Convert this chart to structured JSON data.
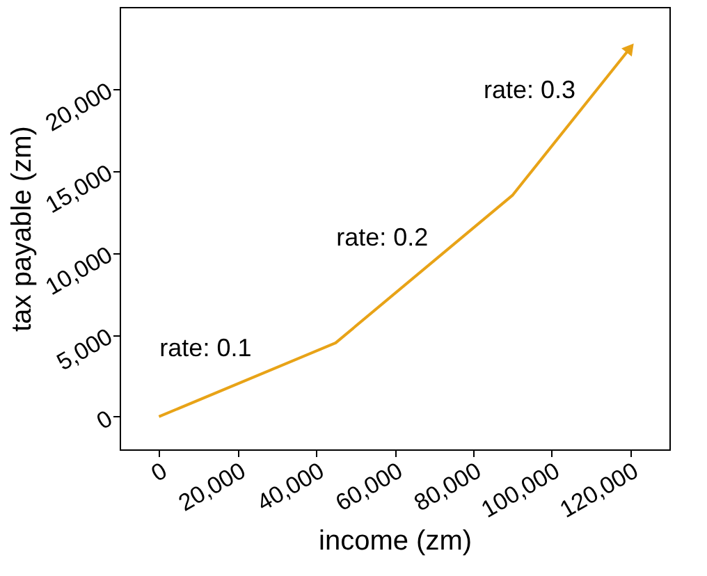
{
  "chart_data": {
    "type": "line",
    "xlabel": "income (zm)",
    "ylabel": "tax payable (zm)",
    "x": [
      0,
      45000,
      90000,
      120000
    ],
    "series": [
      {
        "color": "#e8a317",
        "values": [
          0,
          4500,
          13500,
          22500
        ]
      }
    ],
    "xlim": [
      -10000,
      130000
    ],
    "ylim": [
      -2000,
      25000
    ],
    "xticks": [
      0,
      {
        "value": 20000,
        "label": "20,000"
      },
      {
        "value": 40000,
        "label": "40,000"
      },
      {
        "value": 60000,
        "label": "60,000"
      },
      {
        "value": 80000,
        "label": "80,000"
      },
      {
        "value": 100000,
        "label": "100,000"
      },
      {
        "value": 120000,
        "label": "120,000"
      }
    ],
    "yticks": [
      0,
      {
        "value": 5000,
        "label": "5,000"
      },
      {
        "value": 10000,
        "label": "10,000"
      },
      {
        "value": 15000,
        "label": "15,000"
      },
      {
        "value": 20000,
        "label": "20,000"
      }
    ],
    "annotations": [
      "rate: 0.1",
      "rate: 0.2",
      "rate: 0.3"
    ],
    "grid": false,
    "marker": "none",
    "line_style": "solid"
  }
}
